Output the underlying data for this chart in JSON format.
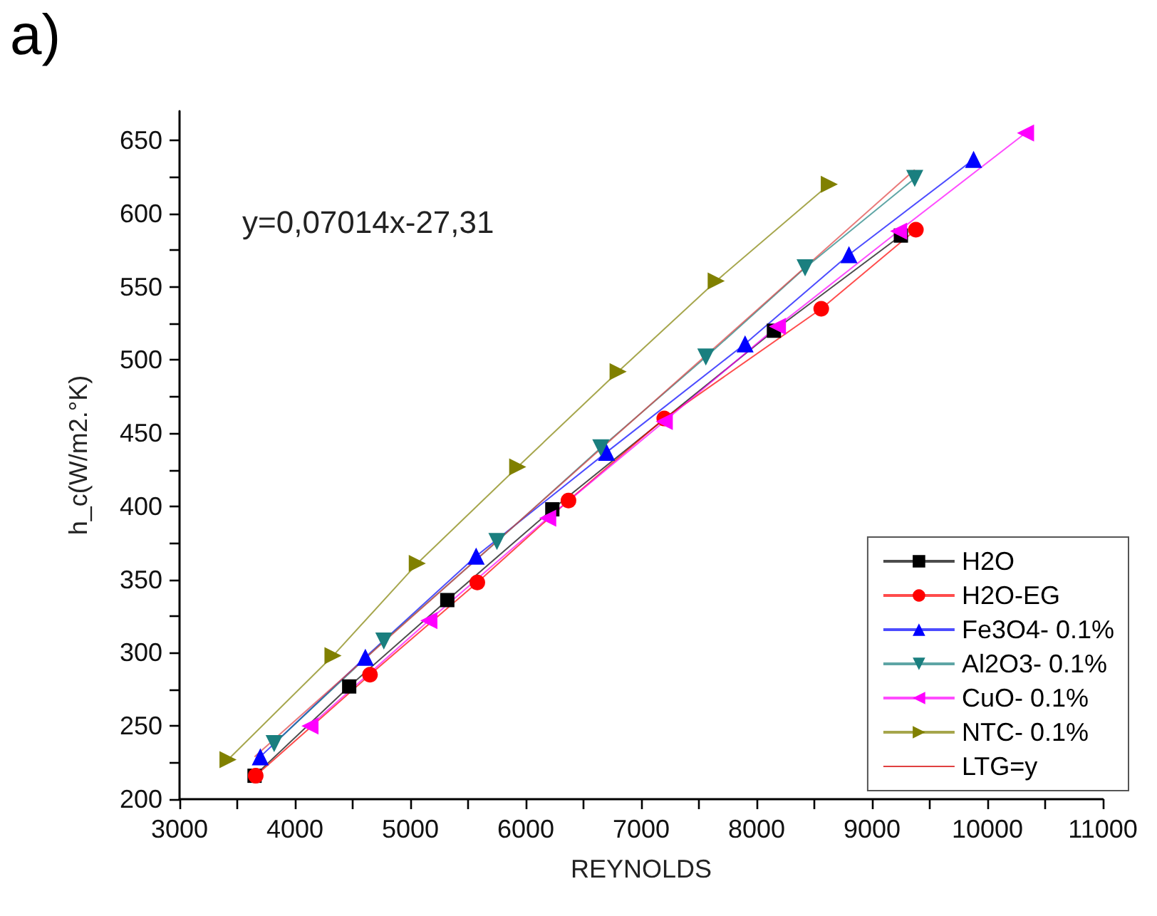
{
  "chart_data": {
    "type": "line",
    "title": "a)",
    "xlabel": "REYNOLDS",
    "ylabel": "h_c(W/m2.°K)",
    "annotations": [
      "y=0,07014x-27,31"
    ],
    "xlim": [
      3000,
      11000
    ],
    "xticks": [
      3000,
      4000,
      5000,
      6000,
      7000,
      8000,
      9000,
      10000,
      11000
    ],
    "ylim": [
      200,
      670
    ],
    "yticks": [
      200,
      250,
      300,
      350,
      400,
      450,
      500,
      550,
      600,
      650
    ],
    "grid": false,
    "legend": "bottom right",
    "series": [
      {
        "name": "H2O",
        "color": "#000000",
        "marker": "square",
        "x": [
          3650,
          4470,
          5320,
          6230,
          8150,
          9250
        ],
        "values": [
          216,
          277,
          336,
          398,
          520,
          585
        ]
      },
      {
        "name": "H2O-EG",
        "color": "#ff0000",
        "marker": "circle",
        "x": [
          3660,
          4650,
          5580,
          6370,
          7200,
          8560,
          9380
        ],
        "values": [
          216,
          285,
          348,
          404,
          460,
          535,
          589
        ]
      },
      {
        "name": "Fe3O4- 0.1%",
        "color": "#0000ff",
        "marker": "triangle",
        "x": [
          3700,
          4610,
          5570,
          6700,
          7900,
          8800,
          9880
        ],
        "values": [
          229,
          297,
          366,
          437,
          511,
          572,
          637
        ]
      },
      {
        "name": "Al2O3- 0.1%",
        "color": "#1a7f7f",
        "marker": "triangle-down",
        "x": [
          3820,
          4770,
          5750,
          6650,
          7560,
          8420,
          9370
        ],
        "values": [
          238,
          308,
          376,
          440,
          502,
          563,
          624
        ]
      },
      {
        "name": "CuO- 0.1%",
        "color": "#ff00ff",
        "marker": "triangle-left",
        "x": [
          4130,
          5160,
          6190,
          7200,
          8180,
          9230,
          10330
        ],
        "values": [
          250,
          322,
          392,
          458,
          523,
          588,
          655
        ]
      },
      {
        "name": "NTC- 0.1%",
        "color": "#808000",
        "marker": "triangle-right",
        "x": [
          3420,
          4330,
          5060,
          5930,
          6800,
          7650,
          8630
        ],
        "values": [
          227,
          298,
          361,
          427,
          492,
          554,
          620
        ]
      },
      {
        "name": "LTG=y",
        "color": "#e04040",
        "marker": "none",
        "x": [
          3650,
          9370
        ],
        "values": [
          229,
          630
        ]
      }
    ]
  }
}
